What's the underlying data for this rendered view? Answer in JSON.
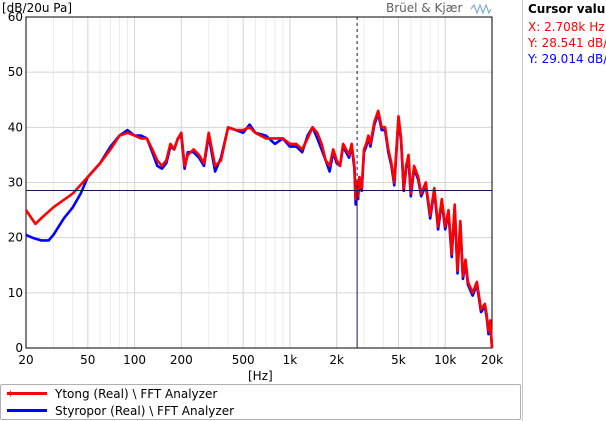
{
  "header": {
    "y_unit_label": "[dB/20u Pa]",
    "brand": "Brüel & Kjær"
  },
  "cursor_panel": {
    "title": "Cursor value",
    "x_readout": "X: 2.708k Hz",
    "y1_readout": "Y: 28.541 dB/",
    "y2_readout": "Y: 29.014 dB/",
    "colors": {
      "x": "#ff0000",
      "y1": "#ff0000",
      "y2": "#0000ff"
    }
  },
  "legend": {
    "items": [
      {
        "label": "Ytong (Real) \\ FFT Analyzer",
        "color": "#ff0000",
        "marker": "star"
      },
      {
        "label": "Styropor (Real) \\ FFT Analyzer",
        "color": "#0000ff",
        "marker": "none"
      }
    ]
  },
  "chart_data": {
    "type": "line",
    "xscale": "log",
    "xlabel": "[Hz]",
    "ylabel": "[dB/20u Pa]",
    "xlim": [
      20,
      20000
    ],
    "ylim": [
      0,
      60
    ],
    "x_ticks": [
      20,
      50,
      100,
      200,
      500,
      1000,
      2000,
      5000,
      10000,
      20000
    ],
    "x_tick_labels": [
      "20",
      "50",
      "100",
      "200",
      "500",
      "1k",
      "2k",
      "5k",
      "10k",
      "20k"
    ],
    "y_ticks": [
      0,
      10,
      20,
      30,
      40,
      50,
      60
    ],
    "y_tick_labels": [
      "0",
      "10",
      "20",
      "30",
      "40",
      "50",
      "60"
    ],
    "grid": true,
    "cursor": {
      "x": 2708,
      "y": 28.541
    },
    "series": [
      {
        "name": "Ytong (Real) \\ FFT Analyzer",
        "color": "#ff0000",
        "x": [
          20,
          23,
          25,
          30,
          40,
          50,
          60,
          70,
          80,
          90,
          100,
          110,
          120,
          130,
          140,
          150,
          160,
          170,
          180,
          190,
          200,
          210,
          220,
          240,
          260,
          280,
          300,
          330,
          360,
          400,
          450,
          500,
          550,
          600,
          700,
          800,
          900,
          1000,
          1100,
          1200,
          1300,
          1400,
          1500,
          1600,
          1700,
          1800,
          1900,
          2000,
          2100,
          2200,
          2300,
          2400,
          2500,
          2600,
          2650,
          2700,
          2750,
          2800,
          2900,
          3000,
          3100,
          3200,
          3300,
          3500,
          3700,
          3900,
          4100,
          4300,
          4500,
          4700,
          5000,
          5200,
          5400,
          5600,
          5800,
          6000,
          6300,
          6700,
          7000,
          7500,
          8000,
          8500,
          9000,
          9500,
          10000,
          10500,
          11000,
          11500,
          12000,
          12500,
          13000,
          13500,
          14000,
          15000,
          16000,
          17000,
          18000,
          18500,
          19000,
          19500,
          20000
        ],
        "values": [
          25,
          22.5,
          23.5,
          25.5,
          28,
          31,
          33.5,
          36,
          38.5,
          39,
          38.5,
          38,
          38,
          36,
          34,
          33,
          34,
          37,
          36,
          38,
          39,
          33,
          35,
          36,
          35,
          33.5,
          39,
          33,
          34,
          40,
          39.5,
          39.5,
          40,
          39,
          38,
          38,
          38,
          37,
          37,
          36,
          38,
          40,
          39,
          37,
          34,
          33,
          36,
          34,
          33,
          37,
          36,
          35,
          37,
          33,
          27,
          30,
          27.5,
          31,
          29,
          36,
          37,
          38.5,
          37,
          41,
          43,
          40,
          40,
          36,
          33.5,
          30,
          42,
          38,
          29,
          33,
          35,
          28,
          33,
          31,
          28,
          30,
          24,
          29,
          22,
          27,
          22,
          25,
          17,
          26,
          14,
          23,
          13,
          16,
          12,
          10,
          12,
          7,
          8,
          6,
          3,
          5,
          0
        ]
      },
      {
        "name": "Styropor (Real) \\ FFT Analyzer",
        "color": "#0000ff",
        "x": [
          20,
          22,
          25,
          28,
          30,
          35,
          40,
          45,
          50,
          60,
          70,
          80,
          90,
          100,
          110,
          120,
          130,
          140,
          150,
          160,
          170,
          180,
          190,
          200,
          210,
          220,
          240,
          260,
          280,
          300,
          330,
          360,
          400,
          450,
          500,
          550,
          600,
          700,
          800,
          900,
          1000,
          1100,
          1200,
          1300,
          1400,
          1500,
          1600,
          1700,
          1800,
          1900,
          2000,
          2100,
          2200,
          2300,
          2400,
          2500,
          2600,
          2650,
          2700,
          2750,
          2800,
          2900,
          3000,
          3100,
          3200,
          3300,
          3500,
          3700,
          3900,
          4100,
          4300,
          4500,
          4700,
          5000,
          5200,
          5400,
          5600,
          5800,
          6000,
          6300,
          6700,
          7000,
          7500,
          8000,
          8500,
          9000,
          9500,
          10000,
          10500,
          11000,
          11500,
          12000,
          12500,
          13000,
          13500,
          14000,
          15000,
          16000,
          17000,
          18000,
          18500,
          19000,
          19500,
          20000
        ],
        "values": [
          20.5,
          20,
          19.5,
          19.5,
          20.5,
          23.5,
          25.5,
          28,
          31,
          33.5,
          36.5,
          38.5,
          39.5,
          38.5,
          38.5,
          38,
          35.5,
          33,
          32.5,
          33.5,
          36.5,
          36,
          38,
          38.5,
          32.5,
          35.5,
          35.5,
          34.5,
          33,
          38.5,
          32,
          34.5,
          40,
          39.5,
          39,
          40.5,
          39,
          38.5,
          37,
          38,
          36.5,
          36.5,
          35.5,
          38.5,
          40,
          38,
          36,
          34,
          32,
          35.5,
          33.5,
          33,
          36.5,
          35.5,
          34.5,
          36.5,
          32.5,
          26,
          30,
          27,
          30.5,
          28.5,
          35.5,
          36.5,
          38,
          36.5,
          40.5,
          42.5,
          39.5,
          39.5,
          35.5,
          33,
          29.5,
          41.5,
          37.5,
          28.5,
          32.5,
          34.5,
          27.5,
          32.5,
          30.5,
          27.5,
          29.5,
          23.5,
          28.5,
          21.5,
          26.5,
          21.5,
          24.5,
          16.5,
          25.5,
          13.5,
          22.5,
          12.5,
          15.5,
          11.5,
          9.5,
          11.5,
          6.5,
          7.5,
          5.5,
          2.5,
          4.5,
          0
        ]
      }
    ]
  }
}
